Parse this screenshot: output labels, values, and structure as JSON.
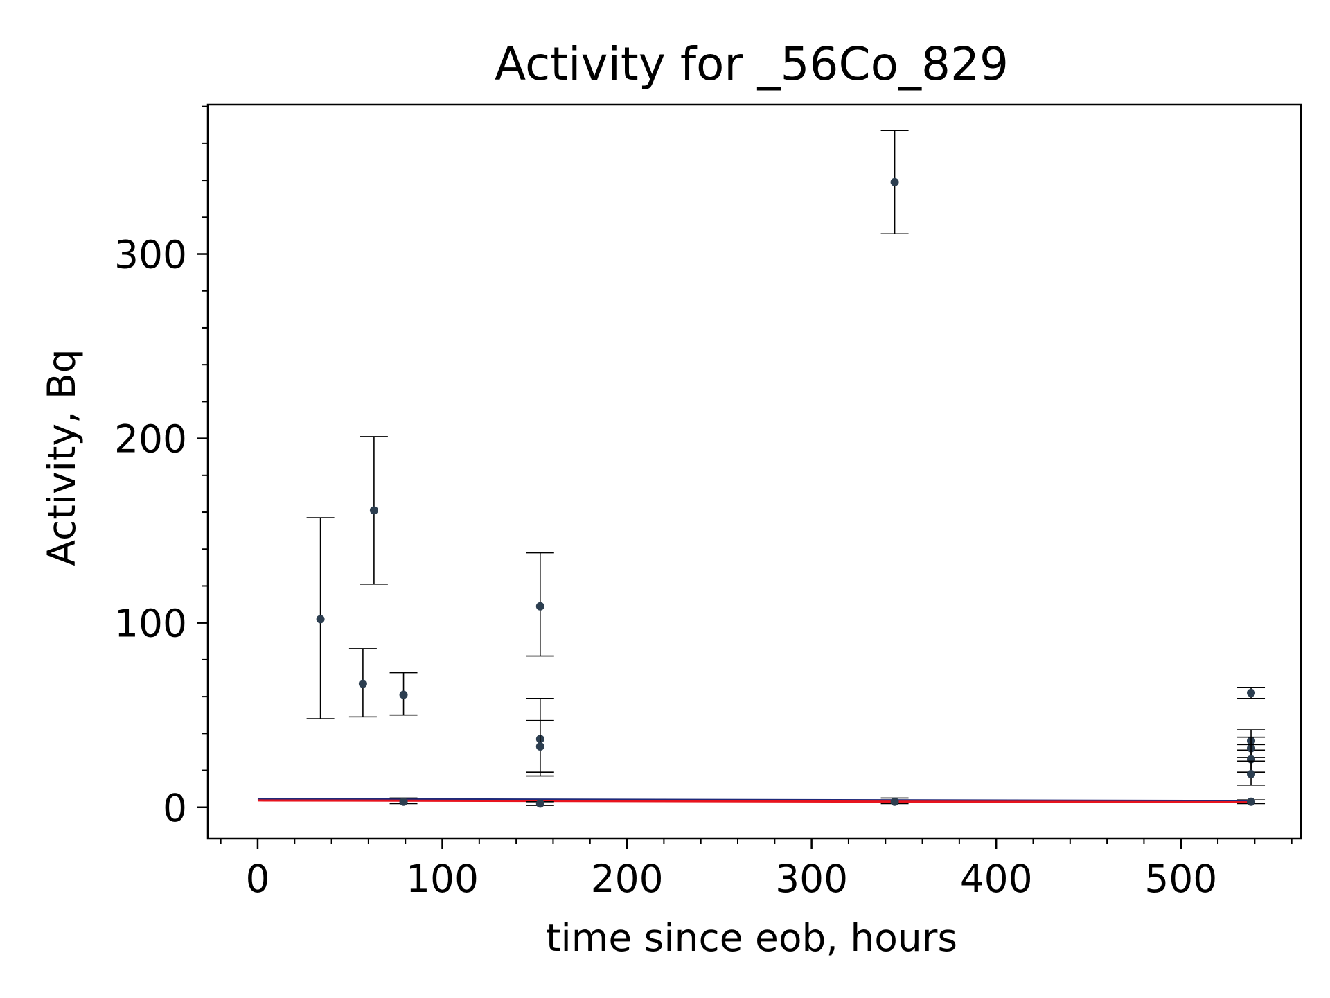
{
  "chart_data": {
    "type": "scatter",
    "title": "Activity for _56Co_829",
    "xlabel": "time since eob, hours",
    "ylabel": "Activity, Bq",
    "xlim": [
      -27,
      565
    ],
    "ylim": [
      -17,
      381
    ],
    "x_ticks": [
      0,
      100,
      200,
      300,
      400,
      500
    ],
    "y_ticks": [
      0,
      100,
      200,
      300
    ],
    "x_minor_step": 20,
    "y_minor_step": 20,
    "grid": false,
    "colors": {
      "points": "#2c3e50",
      "errorbars": "#000000",
      "fit_upper": "#1f2a7a",
      "fit_lower": "#e8141e"
    },
    "series": [
      {
        "marker": "point-with-errorbar",
        "points": [
          {
            "x": 34,
            "y": 102,
            "ylo": 48,
            "yhi": 157
          },
          {
            "x": 57,
            "y": 67,
            "ylo": 49,
            "yhi": 86
          },
          {
            "x": 63,
            "y": 161,
            "ylo": 121,
            "yhi": 201
          },
          {
            "x": 79,
            "y": 61,
            "ylo": 50,
            "yhi": 73
          },
          {
            "x": 79,
            "y": 3,
            "ylo": 2,
            "yhi": 5
          },
          {
            "x": 153,
            "y": 109,
            "ylo": 82,
            "yhi": 138
          },
          {
            "x": 153,
            "y": 37,
            "ylo": 17,
            "yhi": 59
          },
          {
            "x": 153,
            "y": 33,
            "ylo": 19,
            "yhi": 47
          },
          {
            "x": 153,
            "y": 2,
            "ylo": 1,
            "yhi": 3
          },
          {
            "x": 345,
            "y": 339,
            "ylo": 311,
            "yhi": 367
          },
          {
            "x": 345,
            "y": 3,
            "ylo": 2,
            "yhi": 5
          },
          {
            "x": 538,
            "y": 62,
            "ylo": 59,
            "yhi": 65
          },
          {
            "x": 538,
            "y": 36,
            "ylo": 31,
            "yhi": 42
          },
          {
            "x": 538,
            "y": 32,
            "ylo": 27,
            "yhi": 38
          },
          {
            "x": 538,
            "y": 26,
            "ylo": 19,
            "yhi": 34
          },
          {
            "x": 538,
            "y": 18,
            "ylo": 12,
            "yhi": 25
          },
          {
            "x": 538,
            "y": 3,
            "ylo": 2,
            "yhi": 4
          }
        ]
      }
    ],
    "fit_lines": [
      {
        "x": [
          0,
          538
        ],
        "y": [
          4.5,
          3.4
        ]
      },
      {
        "x": [
          0,
          538
        ],
        "y": [
          3.7,
          2.7
        ]
      }
    ]
  }
}
